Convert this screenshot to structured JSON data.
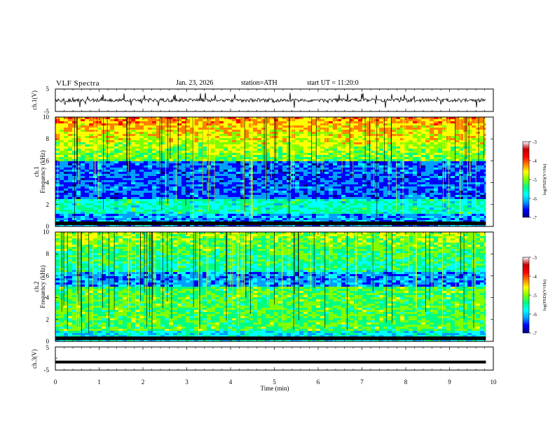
{
  "header": {
    "title": "VLF Spectra",
    "date": "Jan. 23, 2026",
    "station": "station=ATH",
    "start": "start UT =  11:20:0"
  },
  "chart_data": [
    {
      "type": "line",
      "panel": "ch1-waveform",
      "ylabel": "ch.1(V)",
      "ylim": [
        -5,
        5
      ],
      "yticks": [
        "5",
        "-5"
      ],
      "xlim": [
        0,
        10
      ],
      "trace_end": 9.83,
      "baseline": 0
    },
    {
      "type": "heatmap",
      "panel": "ch1-spectrogram",
      "ylabel": [
        "ch.1",
        "Frequency (kHz)"
      ],
      "ylim": [
        0,
        10
      ],
      "yticks": [
        "0",
        "2",
        "4",
        "6",
        "8",
        "10"
      ],
      "xlim": [
        0,
        10
      ],
      "colorbar": {
        "label": "log(PSD)(V²/Hz)",
        "range": [
          -7,
          -3
        ],
        "ticks": [
          "-3",
          "-4",
          "-5",
          "-6",
          "-7"
        ],
        "colors": [
          "#000080",
          "#0000ff",
          "#00a0ff",
          "#00ffff",
          "#00ff80",
          "#80ff00",
          "#ffff00",
          "#ff8000",
          "#ff0000",
          "#c00000",
          "#ffffff"
        ]
      }
    },
    {
      "type": "heatmap",
      "panel": "ch2-spectrogram",
      "ylabel": [
        "ch.2",
        "Frequency (kHz)"
      ],
      "ylim": [
        0,
        10
      ],
      "yticks": [
        "0",
        "2",
        "4",
        "6",
        "8",
        "10"
      ],
      "xlim": [
        0,
        10
      ],
      "colorbar": {
        "label": "log(PSD)(V²/Hz)",
        "range": [
          -7,
          -3
        ],
        "ticks": [
          "-3",
          "-4",
          "-5",
          "-6",
          "-7"
        ]
      }
    },
    {
      "type": "line",
      "panel": "ch3-waveform",
      "ylabel": "ch.3(V)",
      "ylim": [
        -5,
        5
      ],
      "yticks": [
        "5",
        "0",
        "-5"
      ],
      "xlim": [
        0,
        10
      ],
      "xticks": [
        "0",
        "1",
        "2",
        "3",
        "4",
        "5",
        "6",
        "7",
        "8",
        "9",
        "10"
      ],
      "xlabel": "Time (min)",
      "trace_end": 9.83,
      "level": -1.5
    }
  ]
}
